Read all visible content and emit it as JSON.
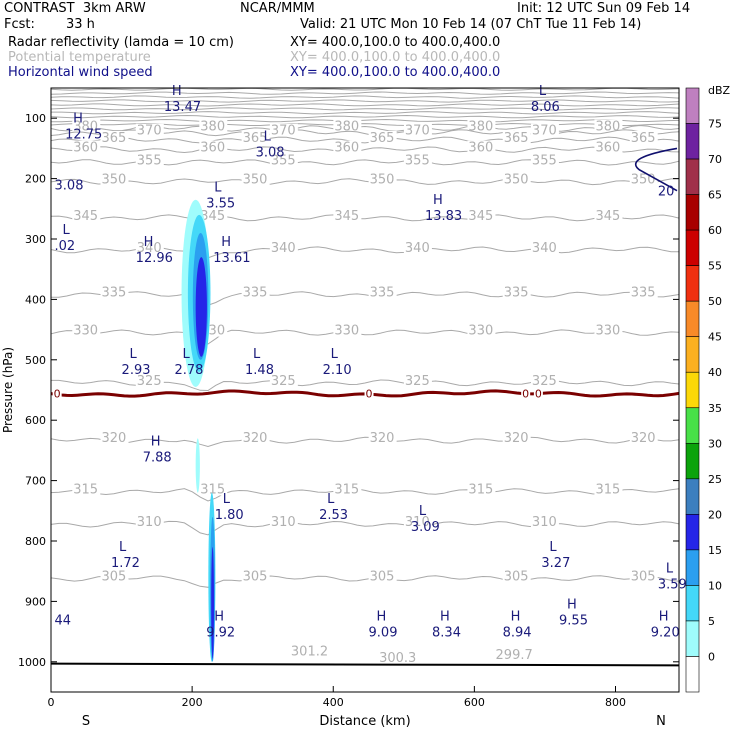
{
  "header": {
    "title_left": "CONTRAST  3km ARW",
    "title_center": "NCAR/MMM",
    "init": "Init: 12 UTC Sun 09 Feb 14",
    "fcst_label": "Fcst:",
    "fcst_value": "33 h",
    "valid": "Valid: 21 UTC Mon 10 Feb 14 (07 ChT Tue 11 Feb 14)",
    "fields": [
      {
        "name": "Radar reflectivity (lamda = 10 cm)",
        "xy": "XY= 400.0,100.0 to 400.0,400.0"
      },
      {
        "name": "Potential temperature",
        "xy": "XY= 400.0,100.0 to 400.0,400.0"
      },
      {
        "name": "Horizontal wind speed",
        "xy": "XY= 400.0,100.0 to 400.0,400.0"
      }
    ]
  },
  "colors": {
    "isentrope": "#a9a9a9",
    "wind_label": "#1a1a7a",
    "wind_contour": "#10106e",
    "freezing": "#7a0000",
    "ground": "#000000"
  },
  "chart_data": {
    "type": "cross-section",
    "xlabel": "Distance (km)",
    "ylabel": "Pressure (hPa)",
    "xlim": [
      0,
      890
    ],
    "ylim": [
      1050,
      50
    ],
    "xticks": [
      "0",
      "200",
      "400",
      "600",
      "800"
    ],
    "xtick_values": [
      0,
      200,
      400,
      600,
      800
    ],
    "yticks": [
      "100",
      "200",
      "300",
      "400",
      "500",
      "600",
      "700",
      "800",
      "900",
      "1000"
    ],
    "ytick_values": [
      100,
      200,
      300,
      400,
      500,
      600,
      700,
      800,
      900,
      1000
    ],
    "left_end": "S",
    "right_end": "N",
    "colorbar": {
      "title": "dBZ",
      "levels": [
        "0",
        "5",
        "10",
        "15",
        "20",
        "25",
        "30",
        "35",
        "40",
        "45",
        "50",
        "55",
        "60",
        "65",
        "70",
        "75"
      ],
      "colors": [
        "#ffffff",
        "#9ffcfc",
        "#44d8f8",
        "#2b9ff0",
        "#2525e8",
        "#3c7fbf",
        "#0ba30b",
        "#48e048",
        "#fcd808",
        "#fcb020",
        "#f88a28",
        "#f03010",
        "#cc0000",
        "#a80000",
        "#a0304a",
        "#6e22a0",
        "#bf80c0"
      ]
    },
    "isentropes": [
      {
        "label": "380",
        "p": 117
      },
      {
        "label": "370",
        "p": 124
      },
      {
        "label": "365",
        "p": 136
      },
      {
        "label": "360",
        "p": 152
      },
      {
        "label": "355",
        "p": 173
      },
      {
        "label": "350",
        "p": 205
      },
      {
        "label": "345",
        "p": 265
      },
      {
        "label": "340",
        "p": 318
      },
      {
        "label": "335",
        "p": 392
      },
      {
        "label": "330",
        "p": 455
      },
      {
        "label": "325",
        "p": 538
      },
      {
        "label": "320",
        "p": 633
      },
      {
        "label": "315",
        "p": 718
      },
      {
        "label": "310",
        "p": 772
      },
      {
        "label": "305",
        "p": 862
      },
      {
        "label": "301.2",
        "p": 985
      },
      {
        "label": "300.3",
        "p": 995
      },
      {
        "label": "299.7",
        "p": 990
      }
    ],
    "freezing_level": {
      "label": "0",
      "p": 556
    },
    "wind_contour": {
      "label": "20",
      "p_start": 150,
      "p_end": 220
    },
    "wind_labels": [
      {
        "type": "H",
        "value": "13.47",
        "x": 160,
        "p": 75
      },
      {
        "type": "L",
        "value": "8.06",
        "x": 680,
        "p": 75
      },
      {
        "type": "H",
        "value": "12.75",
        "x": 20,
        "p": 120
      },
      {
        "type": "L",
        "value": "3.08",
        "x": 290,
        "p": 150
      },
      {
        "type": "",
        "value": "3.08",
        "x": 5,
        "p": 205
      },
      {
        "type": "L",
        "value": "3.55",
        "x": 220,
        "p": 235
      },
      {
        "type": "H",
        "value": "13.83",
        "x": 530,
        "p": 255
      },
      {
        "type": "L",
        "value": ".02",
        "x": 5,
        "p": 305
      },
      {
        "type": "H",
        "value": "12.96",
        "x": 120,
        "p": 325
      },
      {
        "type": "H",
        "value": "13.61",
        "x": 230,
        "p": 325
      },
      {
        "type": "L",
        "value": "2.93",
        "x": 100,
        "p": 510
      },
      {
        "type": "L",
        "value": "2.78",
        "x": 175,
        "p": 510
      },
      {
        "type": "L",
        "value": "1.48",
        "x": 275,
        "p": 510
      },
      {
        "type": "L",
        "value": "2.10",
        "x": 385,
        "p": 510
      },
      {
        "type": "H",
        "value": "7.88",
        "x": 130,
        "p": 655
      },
      {
        "type": "L",
        "value": "1.80",
        "x": 232,
        "p": 750
      },
      {
        "type": "L",
        "value": "2.53",
        "x": 380,
        "p": 750
      },
      {
        "type": "L",
        "value": "3.09",
        "x": 510,
        "p": 770
      },
      {
        "type": "L",
        "value": "1.72",
        "x": 85,
        "p": 830
      },
      {
        "type": "L",
        "value": "3.27",
        "x": 695,
        "p": 830
      },
      {
        "type": "L",
        "value": "3.59",
        "x": 860,
        "p": 865
      },
      {
        "type": "",
        "value": "44",
        "x": 5,
        "p": 925
      },
      {
        "type": "H",
        "value": "9.92",
        "x": 220,
        "p": 945
      },
      {
        "type": "H",
        "value": "9.09",
        "x": 450,
        "p": 945
      },
      {
        "type": "H",
        "value": "8.34",
        "x": 540,
        "p": 945
      },
      {
        "type": "H",
        "value": "8.94",
        "x": 640,
        "p": 945
      },
      {
        "type": "H",
        "value": "9.55",
        "x": 720,
        "p": 925
      },
      {
        "type": "H",
        "value": "9.20",
        "x": 850,
        "p": 945
      }
    ]
  }
}
